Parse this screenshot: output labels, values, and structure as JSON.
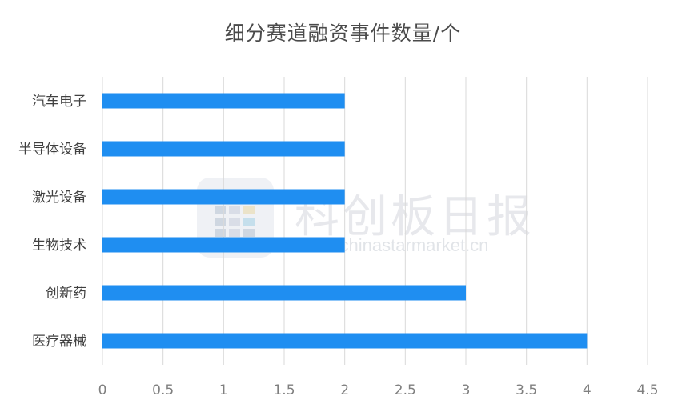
{
  "title": "细分赛道融资事件数量/个",
  "watermark": {
    "name": "科创板日报",
    "url": "www.chinastarmarket.cn"
  },
  "colors": {
    "bar": "#1f8ef1",
    "grid": "#d9d9d9",
    "tick_text": "#7f7f7f",
    "label_text": "#404040"
  },
  "chart_data": {
    "type": "bar",
    "orientation": "horizontal",
    "title": "细分赛道融资事件数量/个",
    "categories": [
      "汽车电子",
      "半导体设备",
      "激光设备",
      "生物技术",
      "创新药",
      "医疗器械"
    ],
    "values": [
      2,
      2,
      2,
      2,
      3,
      4
    ],
    "xlim": [
      0,
      4.5
    ],
    "xticks": [
      "0",
      "0.5",
      "1",
      "1.5",
      "2",
      "2.5",
      "3",
      "3.5",
      "4",
      "4.5"
    ],
    "xlabel": "",
    "ylabel": "",
    "grid": "vertical",
    "legend": "none"
  }
}
